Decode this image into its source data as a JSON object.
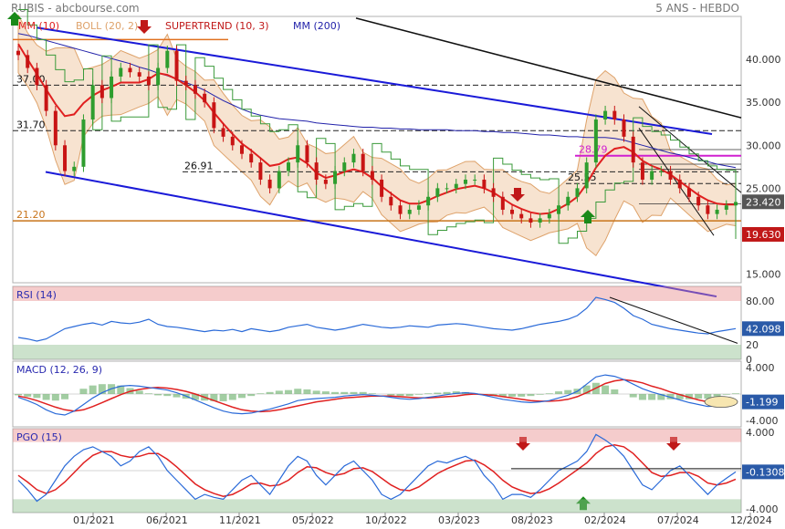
{
  "header": {
    "left": "RUBIS - abcbourse.com",
    "right": "5 ANS - HEBDO"
  },
  "colors": {
    "background": "#ffffff",
    "up_candle": "#2e9d2e",
    "down_candle": "#c81414",
    "boll": "#dea26a",
    "mm10": "#e02020",
    "mm200": "#2222aa",
    "channel": "#1a1ad8",
    "rsi_line": "#2a6ad8",
    "last_price_badge": "#555555",
    "supertrend_badge": "#c01818"
  },
  "chart_data": [
    {
      "type": "candlestick",
      "panel": "price",
      "legend": [
        {
          "label": "MM (10)",
          "color": "#e02020"
        },
        {
          "label": "BOLL (20, 2)",
          "color": "#dea26a"
        },
        {
          "label": "SUPERTREND (10, 3)",
          "color": "#c01818"
        },
        {
          "label": "MM (200)",
          "color": "#2222aa"
        }
      ],
      "ylim": [
        14,
        45
      ],
      "y_ticks": [
        "15.000",
        "20.000",
        "25.000",
        "30.000",
        "35.000",
        "40.000"
      ],
      "x_ticks": [
        "01/2021",
        "06/2021",
        "11/2021",
        "05/2022",
        "10/2022",
        "03/2023",
        "08/2023",
        "02/2024",
        "07/2024",
        "12/2024"
      ],
      "last_price": "23.420",
      "supertrend_value": "19.630",
      "levels": [
        {
          "label": "37.00",
          "value": 37.0
        },
        {
          "label": "31.70",
          "value": 31.7
        },
        {
          "label": "26.91",
          "value": 26.91
        },
        {
          "label": "25.55",
          "value": 25.55
        },
        {
          "label": "28.79",
          "value": 28.79
        },
        {
          "label": "21.20",
          "value": 21.2
        }
      ],
      "close_series": [
        40.5,
        39,
        37,
        34,
        30,
        27,
        27.5,
        33,
        37,
        35.5,
        38,
        39,
        38.5,
        38,
        37,
        39,
        41,
        37.5,
        37,
        36,
        35,
        32,
        31,
        30,
        29,
        28,
        26,
        25,
        27,
        28,
        30,
        28,
        26,
        25.5,
        27,
        28,
        29,
        27,
        26,
        24,
        23,
        22,
        22.5,
        23,
        24,
        25,
        25,
        25.5,
        26,
        26,
        25,
        24,
        22.5,
        22,
        21.5,
        21,
        21.5,
        22,
        23,
        24,
        25,
        28,
        33,
        34,
        33,
        31,
        28,
        26,
        27,
        27,
        26,
        25,
        24,
        23,
        22,
        22.5,
        23,
        23.4
      ],
      "ma10": [
        41.8,
        40,
        38.3,
        36.5,
        34.8,
        33.4,
        33.6,
        34.9,
        35.8,
        36.4,
        36.8,
        37.3,
        37.3,
        37.3,
        37.7,
        38.4,
        38.2,
        37.7,
        37,
        36.2,
        35.2,
        33.8,
        32.5,
        31.3,
        30.2,
        29.4,
        28.5,
        27.6,
        27.8,
        28.4,
        28.6,
        27.9,
        26.8,
        26.2,
        26.5,
        26.9,
        27.2,
        26.9,
        26.2,
        25.2,
        24.4,
        23.6,
        23.2,
        23.2,
        23.6,
        24.1,
        24.5,
        24.9,
        25.1,
        25.3,
        25,
        24.5,
        23.8,
        23.1,
        22.6,
        22.2,
        22,
        22.1,
        22.6,
        23.2,
        24,
        25.5,
        27.4,
        28.8,
        29.6,
        29.8,
        29.2,
        28.2,
        27.6,
        27.2,
        26.6,
        25.8,
        25,
        24.2,
        23.6,
        23.2,
        23.1,
        23.1
      ],
      "ma200": [
        43,
        42.8,
        42.5,
        42.2,
        41.9,
        41.6,
        41.3,
        41,
        40.7,
        40.4,
        40.1,
        39.8,
        39.5,
        39.1,
        38.8,
        38.4,
        38.1,
        37.7,
        37.3,
        36.9,
        36.4,
        35.8,
        35.2,
        34.7,
        34.2,
        33.8,
        33.5,
        33.3,
        33.1,
        33,
        32.9,
        32.8,
        32.6,
        32.5,
        32.4,
        32.3,
        32.2,
        32.1,
        32.1,
        32,
        32,
        31.9,
        31.9,
        31.8,
        31.8,
        31.8,
        31.8,
        31.7,
        31.7,
        31.7,
        31.6,
        31.6,
        31.5,
        31.5,
        31.4,
        31.3,
        31.2,
        31.2,
        31.1,
        31,
        31,
        30.9,
        30.9,
        30.9,
        30.8,
        30.6,
        30.3,
        30,
        29.7,
        29.4,
        29.1,
        28.9,
        28.6,
        28.3,
        28.1,
        27.8,
        27.6,
        27.4
      ]
    },
    {
      "type": "line",
      "panel": "RSI",
      "title": "RSI (14)",
      "ylim": [
        0,
        100
      ],
      "y_ticks": [
        "0",
        "20",
        "80.00"
      ],
      "last_value": "42.098",
      "values": [
        30,
        28,
        25,
        28,
        35,
        42,
        45,
        48,
        50,
        47,
        52,
        50,
        49,
        51,
        55,
        48,
        45,
        44,
        42,
        40,
        38,
        40,
        39,
        41,
        38,
        42,
        40,
        38,
        40,
        44,
        46,
        48,
        44,
        42,
        40,
        42,
        45,
        48,
        46,
        44,
        43,
        44,
        46,
        45,
        44,
        47,
        48,
        49,
        48,
        46,
        44,
        42,
        41,
        40,
        42,
        45,
        48,
        50,
        52,
        55,
        60,
        70,
        85,
        82,
        78,
        70,
        60,
        55,
        48,
        45,
        42,
        40,
        38,
        36,
        35,
        38,
        40,
        42.1
      ]
    },
    {
      "type": "line",
      "panel": "MACD",
      "title": "MACD (12, 26, 9)",
      "ylim": [
        -5,
        5
      ],
      "y_ticks": [
        "4.000",
        "-4.000"
      ],
      "last_value": "-1.199",
      "values": [
        -0.5,
        -1,
        -1.6,
        -2.4,
        -3,
        -3.2,
        -2.6,
        -1.6,
        -0.6,
        0.2,
        0.8,
        1.2,
        1.3,
        1.2,
        1,
        0.8,
        0.6,
        0.2,
        -0.3,
        -0.9,
        -1.5,
        -2.1,
        -2.6,
        -2.9,
        -3,
        -2.9,
        -2.6,
        -2.3,
        -1.9,
        -1.5,
        -1,
        -0.8,
        -0.7,
        -0.6,
        -0.5,
        -0.3,
        -0.2,
        -0.1,
        -0.2,
        -0.3,
        -0.5,
        -0.7,
        -0.8,
        -0.7,
        -0.5,
        -0.3,
        -0.1,
        0.1,
        0.2,
        0.1,
        -0.2,
        -0.5,
        -0.8,
        -1,
        -1.2,
        -1.3,
        -1.2,
        -1,
        -0.6,
        -0.2,
        0.4,
        1.5,
        2.6,
        2.9,
        2.7,
        2.2,
        1.5,
        0.8,
        0.3,
        -0.1,
        -0.5,
        -0.9,
        -1.3,
        -1.6,
        -1.9,
        -1.8,
        -1.5,
        -1.2
      ],
      "signal": [
        -0.3,
        -0.6,
        -1,
        -1.5,
        -2,
        -2.4,
        -2.6,
        -2.4,
        -1.9,
        -1.3,
        -0.7,
        -0.1,
        0.4,
        0.7,
        0.9,
        1,
        0.9,
        0.7,
        0.4,
        0,
        -0.5,
        -1,
        -1.5,
        -2,
        -2.4,
        -2.6,
        -2.7,
        -2.6,
        -2.4,
        -2.1,
        -1.8,
        -1.5,
        -1.2,
        -1,
        -0.8,
        -0.6,
        -0.5,
        -0.4,
        -0.3,
        -0.3,
        -0.3,
        -0.4,
        -0.5,
        -0.6,
        -0.6,
        -0.5,
        -0.4,
        -0.3,
        -0.1,
        0,
        -0.1,
        -0.2,
        -0.4,
        -0.6,
        -0.8,
        -1,
        -1.1,
        -1.1,
        -1,
        -0.8,
        -0.4,
        0.2,
        0.9,
        1.6,
        2,
        2.2,
        2,
        1.7,
        1.2,
        0.8,
        0.3,
        -0.1,
        -0.5,
        -0.9,
        -1.2,
        -1.4,
        -1.4,
        -1.3
      ]
    },
    {
      "type": "line",
      "panel": "PGO",
      "title": "PGO (15)",
      "ylim": [
        -4.4,
        4.4
      ],
      "y_ticks": [
        "4.000",
        "-4.000"
      ],
      "last_value": "-0.1308",
      "values": [
        -1,
        -2,
        -3.2,
        -2.5,
        -1,
        0.5,
        1.5,
        2.2,
        2.5,
        2,
        1.5,
        0.5,
        1,
        2,
        2.5,
        1.5,
        0,
        -1,
        -2,
        -3,
        -2.5,
        -2.8,
        -3,
        -2,
        -1,
        -0.5,
        -1.5,
        -2.5,
        -1,
        0.5,
        1.5,
        1,
        -0.5,
        -1.5,
        -0.5,
        0.5,
        1,
        0,
        -1,
        -2.5,
        -3,
        -2.5,
        -1.5,
        -0.5,
        0.5,
        1,
        0.8,
        1.2,
        1.5,
        1,
        -0.5,
        -1.5,
        -3,
        -2.5,
        -2.5,
        -2.8,
        -2,
        -1,
        0,
        0.5,
        1,
        2,
        3.8,
        3.2,
        2.5,
        1.5,
        0,
        -1.5,
        -2,
        -1,
        0,
        0.5,
        -0.5,
        -1.5,
        -2.5,
        -1.5,
        -0.8,
        -0.13
      ],
      "signal": [
        -0.5,
        -1.2,
        -2,
        -2.4,
        -2,
        -1.2,
        -0.2,
        0.8,
        1.6,
        2,
        2,
        1.6,
        1.4,
        1.5,
        1.8,
        1.8,
        1.2,
        0.4,
        -0.5,
        -1.4,
        -2,
        -2.4,
        -2.7,
        -2.5,
        -2,
        -1.4,
        -1.3,
        -1.6,
        -1.5,
        -1,
        -0.2,
        0.4,
        0.3,
        -0.2,
        -0.5,
        -0.3,
        0.2,
        0.3,
        -0.1,
        -0.8,
        -1.5,
        -2,
        -2.1,
        -1.7,
        -1,
        -0.3,
        0.2,
        0.6,
        1,
        1.1,
        0.6,
        -0.1,
        -1,
        -1.7,
        -2.1,
        -2.4,
        -2.3,
        -1.9,
        -1.3,
        -0.6,
        0.1,
        0.8,
        1.8,
        2.5,
        2.7,
        2.5,
        1.8,
        0.8,
        -0.2,
        -0.6,
        -0.5,
        -0.2,
        -0.2,
        -0.6,
        -1.3,
        -1.5,
        -1.3,
        -0.9
      ]
    }
  ]
}
